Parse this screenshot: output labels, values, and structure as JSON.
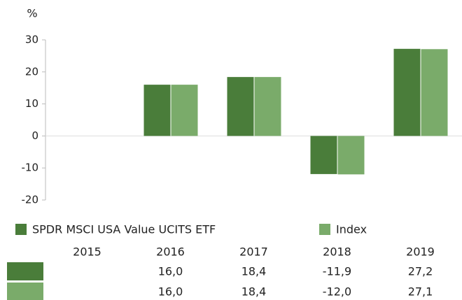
{
  "chart_data": {
    "type": "bar",
    "y_label": "%",
    "categories": [
      "2015",
      "2016",
      "2017",
      "2018",
      "2019"
    ],
    "series": [
      {
        "name": "SPDR MSCI USA Value UCITS ETF",
        "color": "#4a7d3a",
        "values": [
          null,
          16.0,
          18.4,
          -11.9,
          27.2
        ],
        "value_labels": [
          null,
          "16,0",
          "18,4",
          "-11,9",
          "27,2"
        ]
      },
      {
        "name": "Index",
        "color": "#7aab6a",
        "values": [
          null,
          16.0,
          18.4,
          -12.0,
          27.1
        ],
        "value_labels": [
          null,
          "16,0",
          "18,4",
          "-12,0",
          "27,1"
        ]
      }
    ],
    "ylim": [
      -20,
      30
    ],
    "yticks": [
      -20,
      -10,
      0,
      10,
      20,
      30
    ],
    "grid": false
  }
}
